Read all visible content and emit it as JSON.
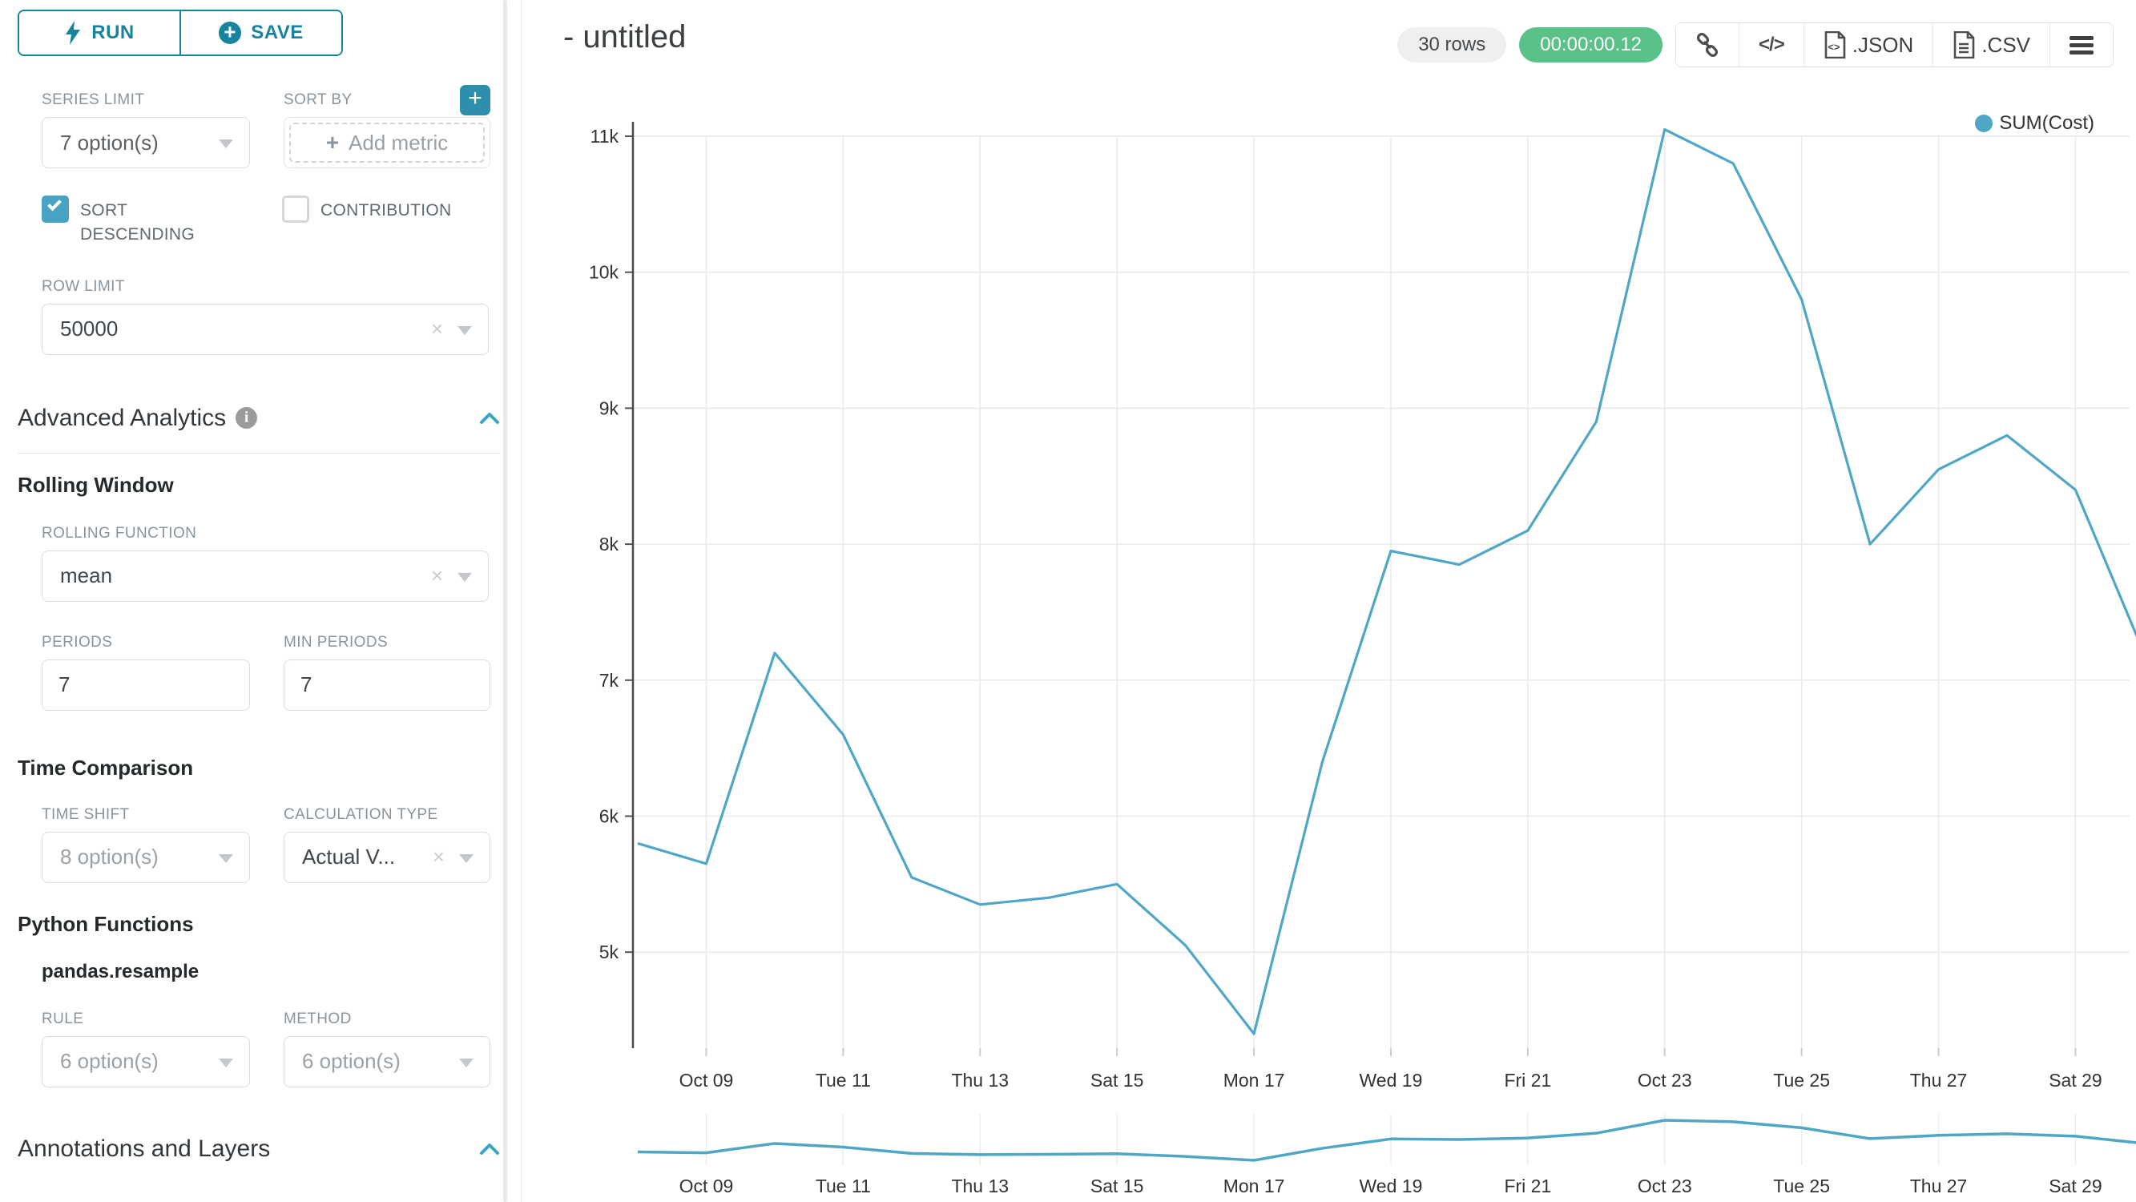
{
  "sidebar": {
    "run_label": "RUN",
    "save_label": "SAVE",
    "series_limit": {
      "label": "SERIES LIMIT",
      "value": "7 option(s)"
    },
    "sort_by": {
      "label": "SORT BY",
      "placeholder": "Add metric"
    },
    "sort_descending_label": "SORT DESCENDING",
    "contribution_label": "CONTRIBUTION",
    "row_limit": {
      "label": "ROW LIMIT",
      "value": "50000"
    },
    "advanced_analytics_title": "Advanced Analytics",
    "rolling_window": {
      "title": "Rolling Window",
      "rolling_function": {
        "label": "ROLLING FUNCTION",
        "value": "mean"
      },
      "periods": {
        "label": "PERIODS",
        "value": "7"
      },
      "min_periods": {
        "label": "MIN PERIODS",
        "value": "7"
      }
    },
    "time_comparison": {
      "title": "Time Comparison",
      "time_shift": {
        "label": "TIME SHIFT",
        "value": "8 option(s)"
      },
      "calculation_type": {
        "label": "CALCULATION TYPE",
        "value": "Actual V..."
      }
    },
    "python_functions": {
      "title": "Python Functions",
      "function_name": "pandas.resample",
      "rule": {
        "label": "RULE",
        "value": "6 option(s)"
      },
      "method": {
        "label": "METHOD",
        "value": "6 option(s)"
      }
    },
    "annotations_title": "Annotations and Layers"
  },
  "header": {
    "title": "- untitled",
    "row_count_badge": "30 rows",
    "query_duration_badge": "00:00:00.12",
    "export_json_label": ".JSON",
    "export_csv_label": ".CSV"
  },
  "colors": {
    "accent_teal": "#17849f",
    "line_blue": "#4fa6c5",
    "success_green": "#5ac189",
    "checkbox_blue": "#48a3c2",
    "chevron_blue": "#3aa4c8"
  },
  "chart_data": {
    "type": "line",
    "title": "",
    "legend_position": "top-right",
    "grid": true,
    "xlabel": "",
    "ylabel": "",
    "ylim": [
      4300,
      11100
    ],
    "y_ticks": [
      {
        "label": "11k",
        "value": 11000
      },
      {
        "label": "10k",
        "value": 10000
      },
      {
        "label": "9k",
        "value": 9000
      },
      {
        "label": "8k",
        "value": 8000
      },
      {
        "label": "7k",
        "value": 7000
      },
      {
        "label": "6k",
        "value": 6000
      },
      {
        "label": "5k",
        "value": 5000
      }
    ],
    "x_ticks": [
      {
        "index": 1,
        "label": "Oct 09"
      },
      {
        "index": 3,
        "label": "Tue 11"
      },
      {
        "index": 5,
        "label": "Thu 13"
      },
      {
        "index": 7,
        "label": "Sat 15"
      },
      {
        "index": 9,
        "label": "Mon 17"
      },
      {
        "index": 11,
        "label": "Wed 19"
      },
      {
        "index": 13,
        "label": "Fri 21"
      },
      {
        "index": 15,
        "label": "Oct 23"
      },
      {
        "index": 17,
        "label": "Tue 25"
      },
      {
        "index": 19,
        "label": "Thu 27"
      },
      {
        "index": 21,
        "label": "Sat 29"
      }
    ],
    "series": [
      {
        "name": "SUM(Cost)",
        "x": [
          "Oct 08",
          "Oct 09",
          "Oct 10",
          "Oct 11",
          "Oct 12",
          "Oct 13",
          "Oct 14",
          "Oct 15",
          "Oct 16",
          "Oct 17",
          "Oct 18",
          "Oct 19",
          "Oct 20",
          "Oct 21",
          "Oct 22",
          "Oct 23",
          "Oct 24",
          "Oct 25",
          "Oct 26",
          "Oct 27",
          "Oct 28",
          "Oct 29",
          "Oct 30"
        ],
        "values": [
          5800,
          5650,
          7200,
          6600,
          5550,
          5350,
          5400,
          5500,
          5050,
          4400,
          6400,
          7950,
          7850,
          8100,
          8900,
          11050,
          10800,
          9800,
          8000,
          8550,
          8800,
          8400,
          7200
        ]
      }
    ],
    "has_mini_preview_chart": true
  }
}
